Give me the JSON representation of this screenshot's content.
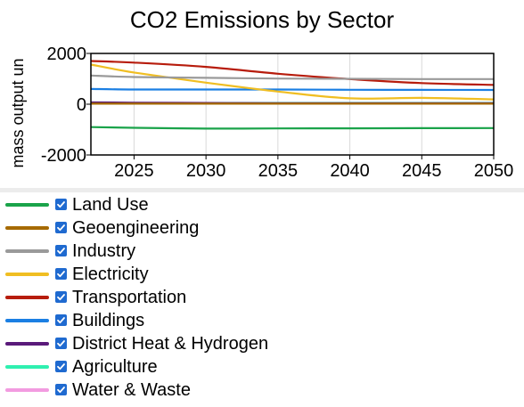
{
  "chart_data": {
    "type": "line",
    "title": "CO2 Emissions by Sector",
    "xlabel": "",
    "ylabel": "mass output un",
    "xlim": [
      2022,
      2050
    ],
    "ylim": [
      -2000,
      2000
    ],
    "x_ticks": [
      2025,
      2030,
      2035,
      2040,
      2045,
      2050
    ],
    "y_ticks": [
      2000,
      0,
      -2000
    ],
    "grid": true,
    "legend_position": "bottom",
    "x": [
      2022,
      2025,
      2030,
      2035,
      2040,
      2045,
      2050
    ],
    "series": [
      {
        "name": "Land Use",
        "color": "#1aa34a",
        "values": [
          -900,
          -930,
          -960,
          -955,
          -950,
          -945,
          -940
        ]
      },
      {
        "name": "Geoengineering",
        "color": "#a66a00",
        "values": [
          20,
          20,
          20,
          20,
          20,
          20,
          20
        ]
      },
      {
        "name": "Industry",
        "color": "#9a9a9a",
        "values": [
          1130,
          1070,
          1040,
          1010,
          1000,
          990,
          990
        ]
      },
      {
        "name": "Electricity",
        "color": "#f0be22",
        "values": [
          1560,
          1250,
          850,
          500,
          230,
          250,
          190
        ]
      },
      {
        "name": "Transportation",
        "color": "#b71c0c",
        "values": [
          1700,
          1640,
          1470,
          1200,
          990,
          830,
          760
        ]
      },
      {
        "name": "Buildings",
        "color": "#1b7fe3",
        "values": [
          600,
          580,
          580,
          580,
          570,
          565,
          560
        ]
      },
      {
        "name": "District Heat & Hydrogen",
        "color": "#5a1a7a",
        "values": [
          70,
          60,
          50,
          40,
          40,
          40,
          40
        ]
      },
      {
        "name": "Agriculture",
        "color": "#2ff0b0",
        "values": [
          50,
          50,
          50,
          50,
          50,
          50,
          50
        ]
      },
      {
        "name": "Water & Waste",
        "color": "#f29be0",
        "values": [
          30,
          30,
          30,
          30,
          30,
          30,
          30
        ]
      }
    ]
  }
}
